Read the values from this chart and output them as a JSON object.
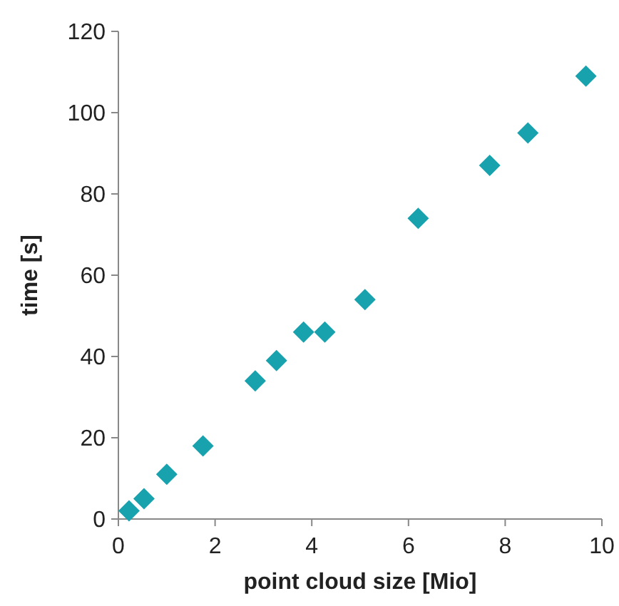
{
  "chart_data": {
    "type": "scatter",
    "xlabel": "point cloud size [Mio]",
    "ylabel": "time [s]",
    "x": [
      0.22,
      0.53,
      1.0,
      1.75,
      2.83,
      3.27,
      3.83,
      4.27,
      5.1,
      6.2,
      7.68,
      8.47,
      9.67
    ],
    "series": [
      {
        "color": "#17a2ad",
        "values": [
          2,
          5,
          11,
          18,
          34,
          39,
          46,
          46,
          54,
          74,
          87,
          95,
          109
        ]
      }
    ],
    "xlim": [
      0,
      10
    ],
    "xticks": [
      0,
      2,
      4,
      6,
      8,
      10
    ],
    "ylim": [
      0,
      120
    ],
    "yticks": [
      0,
      20,
      40,
      60,
      80,
      100,
      120
    ],
    "marker": "diamond",
    "grid": false
  }
}
